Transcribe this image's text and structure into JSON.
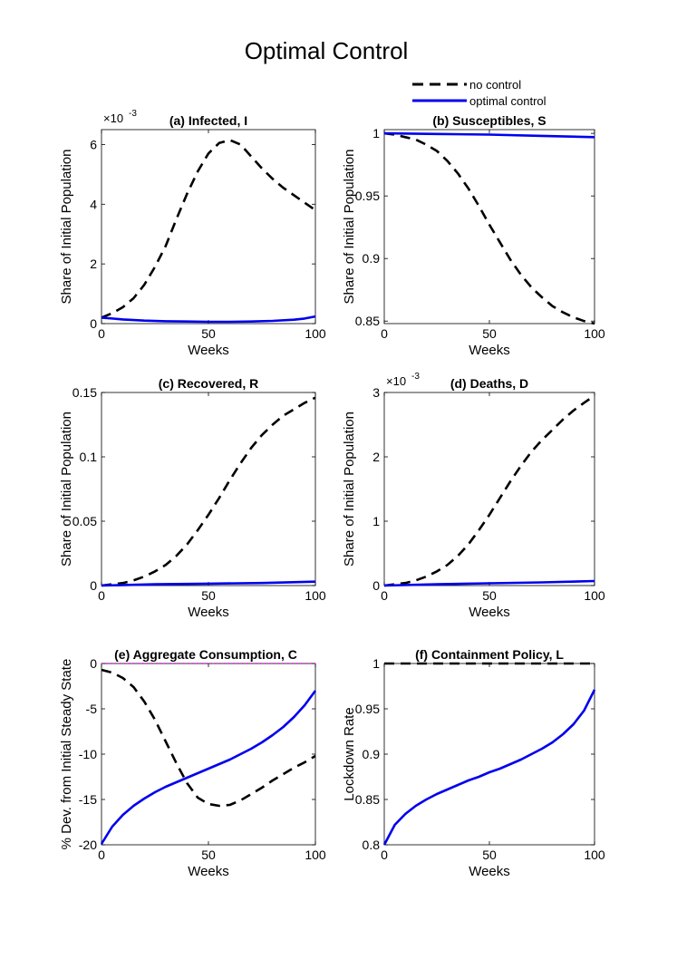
{
  "figure": {
    "title": "Optimal Control",
    "legend": [
      {
        "label": "no control",
        "style": "dashed",
        "color": "#000000"
      },
      {
        "label": "optimal control",
        "style": "solid",
        "color": "#0000ee"
      }
    ],
    "colors": {
      "no_control": "#000000",
      "optimal_control": "#0000ee",
      "reference": "#ff00ff",
      "axes": "#000000"
    }
  },
  "chart_data": [
    {
      "id": "infected",
      "type": "line",
      "title": "(a) Infected, I",
      "xlabel": "Weeks",
      "ylabel": "Share of Initial Population",
      "multiplier": "×10",
      "multiplier_exp": "-3",
      "xlim": [
        0,
        100
      ],
      "ylim": [
        0,
        6.5
      ],
      "xticks": [
        0,
        50,
        100
      ],
      "yticks": [
        0,
        2,
        4,
        6
      ],
      "ytick_labels": [
        "0",
        "2",
        "4",
        "6"
      ],
      "series": [
        {
          "name": "no control",
          "style": "dashed",
          "x": [
            0,
            5,
            10,
            15,
            20,
            25,
            30,
            35,
            40,
            45,
            50,
            55,
            60,
            65,
            70,
            75,
            80,
            85,
            90,
            95,
            100
          ],
          "y": [
            0.2,
            0.35,
            0.55,
            0.85,
            1.3,
            1.9,
            2.6,
            3.5,
            4.35,
            5.1,
            5.7,
            6.05,
            6.15,
            6.0,
            5.6,
            5.2,
            4.85,
            4.55,
            4.3,
            4.05,
            3.8
          ]
        },
        {
          "name": "optimal control",
          "style": "solid",
          "x": [
            0,
            10,
            20,
            30,
            40,
            50,
            60,
            70,
            80,
            90,
            95,
            100
          ],
          "y": [
            0.2,
            0.14,
            0.1,
            0.08,
            0.07,
            0.06,
            0.06,
            0.07,
            0.09,
            0.13,
            0.17,
            0.24
          ]
        }
      ]
    },
    {
      "id": "susceptibles",
      "type": "line",
      "title": "(b) Susceptibles, S",
      "xlabel": "Weeks",
      "ylabel": "Share of Initial Population",
      "xlim": [
        0,
        100
      ],
      "ylim": [
        0.848,
        1.003
      ],
      "xticks": [
        0,
        50,
        100
      ],
      "yticks": [
        0.85,
        0.9,
        0.95,
        1
      ],
      "ytick_labels": [
        "0.85",
        "0.9",
        "0.95",
        "1"
      ],
      "series": [
        {
          "name": "no control",
          "style": "dashed",
          "x": [
            0,
            5,
            10,
            15,
            20,
            25,
            30,
            35,
            40,
            45,
            50,
            55,
            60,
            65,
            70,
            75,
            80,
            85,
            90,
            95,
            100
          ],
          "y": [
            1.0,
            0.999,
            0.997,
            0.995,
            0.991,
            0.986,
            0.978,
            0.968,
            0.956,
            0.942,
            0.927,
            0.913,
            0.899,
            0.887,
            0.877,
            0.869,
            0.862,
            0.857,
            0.853,
            0.85,
            0.848
          ]
        },
        {
          "name": "optimal control",
          "style": "solid",
          "x": [
            0,
            25,
            50,
            75,
            100
          ],
          "y": [
            1.0,
            0.9995,
            0.999,
            0.998,
            0.997
          ]
        }
      ]
    },
    {
      "id": "recovered",
      "type": "line",
      "title": "(c) Recovered, R",
      "xlabel": "Weeks",
      "ylabel": "Share of Initial Population",
      "xlim": [
        0,
        100
      ],
      "ylim": [
        0,
        0.15
      ],
      "xticks": [
        0,
        50,
        100
      ],
      "yticks": [
        0,
        0.05,
        0.1,
        0.15
      ],
      "ytick_labels": [
        "0",
        "0.05",
        "0.1",
        "0.15"
      ],
      "series": [
        {
          "name": "no control",
          "style": "dashed",
          "x": [
            0,
            5,
            10,
            15,
            20,
            25,
            30,
            35,
            40,
            45,
            50,
            55,
            60,
            65,
            70,
            75,
            80,
            85,
            90,
            95,
            100
          ],
          "y": [
            0.0,
            0.001,
            0.002,
            0.004,
            0.007,
            0.011,
            0.016,
            0.023,
            0.032,
            0.043,
            0.055,
            0.068,
            0.082,
            0.095,
            0.107,
            0.117,
            0.125,
            0.132,
            0.137,
            0.142,
            0.146
          ]
        },
        {
          "name": "optimal control",
          "style": "solid",
          "x": [
            0,
            25,
            50,
            75,
            100
          ],
          "y": [
            0.0,
            0.001,
            0.0015,
            0.002,
            0.003
          ]
        }
      ]
    },
    {
      "id": "deaths",
      "type": "line",
      "title": "(d) Deaths, D",
      "xlabel": "Weeks",
      "ylabel": "Share of Initial Population",
      "multiplier": "×10",
      "multiplier_exp": "-3",
      "xlim": [
        0,
        100
      ],
      "ylim": [
        0,
        3
      ],
      "xticks": [
        0,
        50,
        100
      ],
      "yticks": [
        0,
        1,
        2,
        3
      ],
      "ytick_labels": [
        "0",
        "1",
        "2",
        "3"
      ],
      "series": [
        {
          "name": "no control",
          "style": "dashed",
          "x": [
            0,
            5,
            10,
            15,
            20,
            25,
            30,
            35,
            40,
            45,
            50,
            55,
            60,
            65,
            70,
            75,
            80,
            85,
            90,
            95,
            100
          ],
          "y": [
            0.0,
            0.02,
            0.04,
            0.08,
            0.14,
            0.22,
            0.32,
            0.46,
            0.64,
            0.86,
            1.1,
            1.36,
            1.62,
            1.86,
            2.08,
            2.26,
            2.42,
            2.58,
            2.72,
            2.84,
            2.95
          ]
        },
        {
          "name": "optimal control",
          "style": "solid",
          "x": [
            0,
            25,
            50,
            75,
            100
          ],
          "y": [
            0.0,
            0.02,
            0.035,
            0.05,
            0.07
          ]
        }
      ]
    },
    {
      "id": "consumption",
      "type": "line",
      "title": "(e) Aggregate Consumption, C",
      "xlabel": "Weeks",
      "ylabel": "% Dev. from Initial Steady State",
      "xlim": [
        0,
        100
      ],
      "ylim": [
        -20,
        0
      ],
      "xticks": [
        0,
        50,
        100
      ],
      "yticks": [
        -20,
        -15,
        -10,
        -5,
        0
      ],
      "ytick_labels": [
        "-20",
        "-15",
        "-10",
        "-5",
        "0"
      ],
      "series": [
        {
          "name": "no control",
          "style": "dashed",
          "x": [
            0,
            5,
            10,
            15,
            20,
            25,
            30,
            35,
            40,
            45,
            50,
            55,
            60,
            65,
            70,
            75,
            80,
            85,
            90,
            95,
            100
          ],
          "y": [
            -0.7,
            -1.0,
            -1.6,
            -2.6,
            -4.2,
            -6.2,
            -8.6,
            -11.0,
            -13.2,
            -14.8,
            -15.5,
            -15.7,
            -15.6,
            -15.1,
            -14.4,
            -13.7,
            -12.9,
            -12.2,
            -11.5,
            -10.9,
            -10.2
          ]
        },
        {
          "name": "optimal control",
          "style": "solid",
          "x": [
            0,
            5,
            10,
            15,
            20,
            25,
            30,
            35,
            40,
            45,
            50,
            55,
            60,
            65,
            70,
            75,
            80,
            85,
            90,
            95,
            100
          ],
          "y": [
            -19.9,
            -18.0,
            -16.7,
            -15.7,
            -14.9,
            -14.2,
            -13.6,
            -13.1,
            -12.6,
            -12.1,
            -11.6,
            -11.1,
            -10.6,
            -10.0,
            -9.4,
            -8.7,
            -7.9,
            -7.0,
            -5.9,
            -4.6,
            -3.0
          ]
        },
        {
          "name": "reference",
          "style": "dotted",
          "x": [
            0,
            100
          ],
          "y": [
            0,
            0
          ]
        }
      ]
    },
    {
      "id": "containment",
      "type": "line",
      "title": "(f) Containment Policy, L",
      "xlabel": "Weeks",
      "ylabel": "Lockdown Rate",
      "xlim": [
        0,
        100
      ],
      "ylim": [
        0.8,
        1
      ],
      "xticks": [
        0,
        50,
        100
      ],
      "yticks": [
        0.8,
        0.85,
        0.9,
        0.95,
        1
      ],
      "ytick_labels": [
        "0.8",
        "0.85",
        "0.9",
        "0.95",
        "1"
      ],
      "series": [
        {
          "name": "no control",
          "style": "dashed",
          "x": [
            0,
            100
          ],
          "y": [
            1,
            1
          ]
        },
        {
          "name": "optimal control",
          "style": "solid",
          "x": [
            0,
            5,
            10,
            15,
            20,
            25,
            30,
            35,
            40,
            45,
            50,
            55,
            60,
            65,
            70,
            75,
            80,
            85,
            90,
            95,
            100
          ],
          "y": [
            0.8,
            0.822,
            0.834,
            0.843,
            0.85,
            0.856,
            0.861,
            0.866,
            0.871,
            0.875,
            0.88,
            0.884,
            0.889,
            0.894,
            0.9,
            0.906,
            0.913,
            0.922,
            0.933,
            0.948,
            0.971
          ]
        }
      ]
    }
  ]
}
